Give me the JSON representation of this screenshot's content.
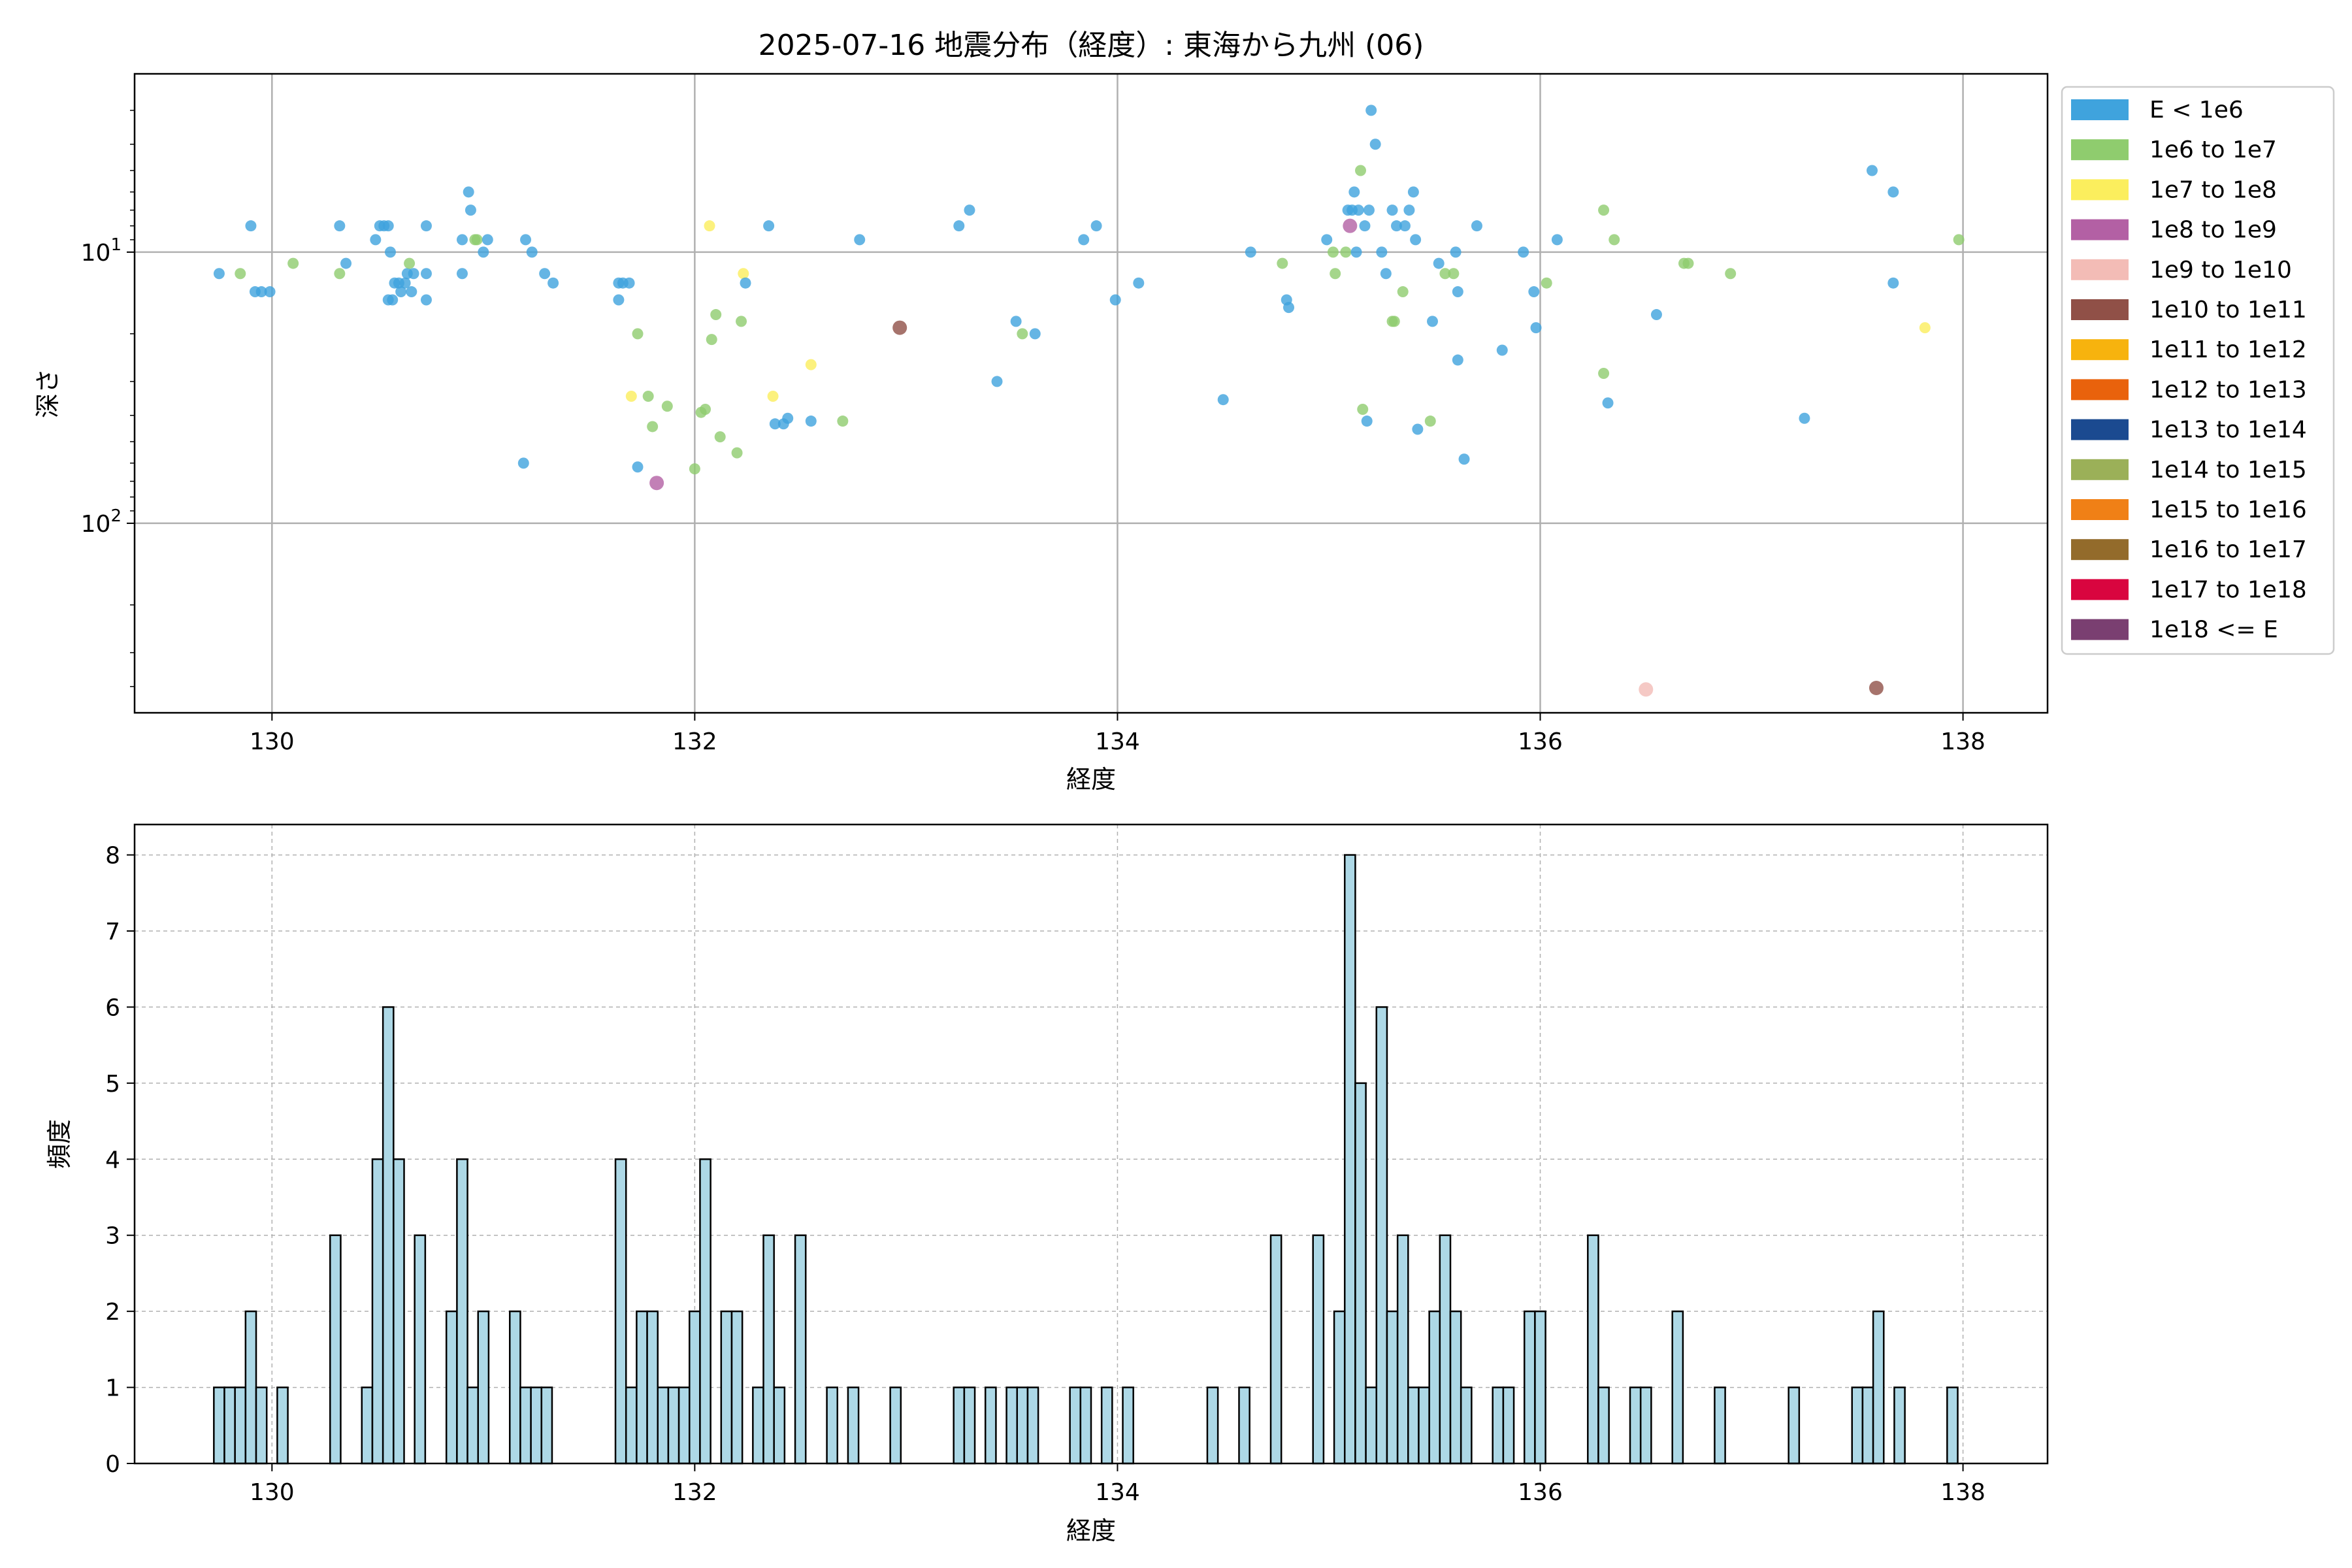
{
  "chart_data": [
    {
      "type": "scatter",
      "title": "2025-07-16 地震分布（経度）: 東海から九州 (06)",
      "xlabel": "経度",
      "ylabel": "深さ",
      "xlim": [
        129.35,
        138.4
      ],
      "ylim": [
        500,
        2.2
      ],
      "yscale": "log",
      "y_inverted": true,
      "grid": true,
      "legend_position": "outside-right",
      "x_ticks": [
        130,
        132,
        134,
        136,
        138
      ],
      "y_ticks": [
        {
          "value": 10,
          "base": "10",
          "exp": "1"
        },
        {
          "value": 100,
          "base": "10",
          "exp": "2"
        }
      ],
      "categories": [
        {
          "label": "E < 1e6",
          "color": "#3fa3dd"
        },
        {
          "label": "1e6 to 1e7",
          "color": "#8fcc6e"
        },
        {
          "label": "1e7 to 1e8",
          "color": "#fbee5d"
        },
        {
          "label": "1e8 to 1e9",
          "color": "#b360a4"
        },
        {
          "label": "1e9 to 1e10",
          "color": "#f3bcb6"
        },
        {
          "label": "1e10 to 1e11",
          "color": "#905047"
        },
        {
          "label": "1e11 to 1e12",
          "color": "#f7b30e"
        },
        {
          "label": "1e12 to 1e13",
          "color": "#e9620c"
        },
        {
          "label": "1e13 to 1e14",
          "color": "#1b4a90"
        },
        {
          "label": "1e14 to 1e15",
          "color": "#9bb058"
        },
        {
          "label": "1e15 to 1e16",
          "color": "#f08016"
        },
        {
          "label": "1e16 to 1e17",
          "color": "#936b2b"
        },
        {
          "label": "1e17 to 1e18",
          "color": "#d9053f"
        },
        {
          "label": "1e18 <= E",
          "color": "#7a3f71"
        }
      ],
      "points": [
        {
          "x": 129.75,
          "y": 12,
          "c": 0
        },
        {
          "x": 129.85,
          "y": 12,
          "c": 1
        },
        {
          "x": 129.9,
          "y": 8,
          "c": 0
        },
        {
          "x": 129.92,
          "y": 14,
          "c": 0
        },
        {
          "x": 129.95,
          "y": 14,
          "c": 0
        },
        {
          "x": 129.99,
          "y": 14,
          "c": 0
        },
        {
          "x": 130.1,
          "y": 11,
          "c": 1
        },
        {
          "x": 130.32,
          "y": 8,
          "c": 0
        },
        {
          "x": 130.32,
          "y": 12,
          "c": 1
        },
        {
          "x": 130.35,
          "y": 11,
          "c": 0
        },
        {
          "x": 130.49,
          "y": 9,
          "c": 0
        },
        {
          "x": 130.51,
          "y": 8,
          "c": 0
        },
        {
          "x": 130.53,
          "y": 8,
          "c": 0
        },
        {
          "x": 130.55,
          "y": 8,
          "c": 0
        },
        {
          "x": 130.56,
          "y": 10,
          "c": 0
        },
        {
          "x": 130.55,
          "y": 15,
          "c": 0
        },
        {
          "x": 130.57,
          "y": 15,
          "c": 0
        },
        {
          "x": 130.58,
          "y": 13,
          "c": 0
        },
        {
          "x": 130.6,
          "y": 13,
          "c": 0
        },
        {
          "x": 130.61,
          "y": 14,
          "c": 0
        },
        {
          "x": 130.63,
          "y": 13,
          "c": 0
        },
        {
          "x": 130.64,
          "y": 12,
          "c": 0
        },
        {
          "x": 130.65,
          "y": 11,
          "c": 1
        },
        {
          "x": 130.66,
          "y": 14,
          "c": 0
        },
        {
          "x": 130.67,
          "y": 12,
          "c": 0
        },
        {
          "x": 130.73,
          "y": 8,
          "c": 0
        },
        {
          "x": 130.73,
          "y": 12,
          "c": 0
        },
        {
          "x": 130.73,
          "y": 15,
          "c": 0
        },
        {
          "x": 130.9,
          "y": 9,
          "c": 0
        },
        {
          "x": 130.9,
          "y": 12,
          "c": 0
        },
        {
          "x": 130.93,
          "y": 6,
          "c": 0
        },
        {
          "x": 130.94,
          "y": 7,
          "c": 0
        },
        {
          "x": 130.96,
          "y": 9,
          "c": 1
        },
        {
          "x": 130.97,
          "y": 9,
          "c": 1
        },
        {
          "x": 131.0,
          "y": 10,
          "c": 0
        },
        {
          "x": 131.02,
          "y": 9,
          "c": 0
        },
        {
          "x": 131.19,
          "y": 60,
          "c": 0
        },
        {
          "x": 131.2,
          "y": 9,
          "c": 0
        },
        {
          "x": 131.23,
          "y": 10,
          "c": 0
        },
        {
          "x": 131.29,
          "y": 12,
          "c": 0
        },
        {
          "x": 131.33,
          "y": 13,
          "c": 0
        },
        {
          "x": 131.64,
          "y": 13,
          "c": 0
        },
        {
          "x": 131.64,
          "y": 15,
          "c": 0
        },
        {
          "x": 131.66,
          "y": 13,
          "c": 0
        },
        {
          "x": 131.69,
          "y": 13,
          "c": 0
        },
        {
          "x": 131.7,
          "y": 34,
          "c": 2
        },
        {
          "x": 131.73,
          "y": 20,
          "c": 1
        },
        {
          "x": 131.73,
          "y": 62,
          "c": 0
        },
        {
          "x": 131.78,
          "y": 34,
          "c": 1
        },
        {
          "x": 131.8,
          "y": 44,
          "c": 1
        },
        {
          "x": 131.82,
          "y": 71,
          "c": 3
        },
        {
          "x": 131.87,
          "y": 37,
          "c": 1
        },
        {
          "x": 132.0,
          "y": 63,
          "c": 1
        },
        {
          "x": 132.03,
          "y": 39,
          "c": 1
        },
        {
          "x": 132.05,
          "y": 38,
          "c": 1
        },
        {
          "x": 132.07,
          "y": 8,
          "c": 2
        },
        {
          "x": 132.08,
          "y": 21,
          "c": 1
        },
        {
          "x": 132.1,
          "y": 17,
          "c": 1
        },
        {
          "x": 132.12,
          "y": 48,
          "c": 1
        },
        {
          "x": 132.2,
          "y": 55,
          "c": 1
        },
        {
          "x": 132.23,
          "y": 12,
          "c": 2
        },
        {
          "x": 132.24,
          "y": 13,
          "c": 0
        },
        {
          "x": 132.22,
          "y": 18,
          "c": 1
        },
        {
          "x": 132.35,
          "y": 8,
          "c": 0
        },
        {
          "x": 132.37,
          "y": 34,
          "c": 2
        },
        {
          "x": 132.38,
          "y": 43,
          "c": 0
        },
        {
          "x": 132.42,
          "y": 43,
          "c": 0
        },
        {
          "x": 132.44,
          "y": 41,
          "c": 0
        },
        {
          "x": 132.55,
          "y": 26,
          "c": 2
        },
        {
          "x": 132.55,
          "y": 42,
          "c": 0
        },
        {
          "x": 132.7,
          "y": 42,
          "c": 1
        },
        {
          "x": 132.78,
          "y": 9,
          "c": 0
        },
        {
          "x": 132.97,
          "y": 19,
          "c": 5
        },
        {
          "x": 133.25,
          "y": 8,
          "c": 0
        },
        {
          "x": 133.3,
          "y": 7,
          "c": 0
        },
        {
          "x": 133.43,
          "y": 30,
          "c": 0
        },
        {
          "x": 133.52,
          "y": 18,
          "c": 0
        },
        {
          "x": 133.55,
          "y": 20,
          "c": 1
        },
        {
          "x": 133.61,
          "y": 20,
          "c": 0
        },
        {
          "x": 133.84,
          "y": 9,
          "c": 0
        },
        {
          "x": 133.9,
          "y": 8,
          "c": 0
        },
        {
          "x": 133.99,
          "y": 15,
          "c": 0
        },
        {
          "x": 134.1,
          "y": 13,
          "c": 0
        },
        {
          "x": 134.5,
          "y": 35,
          "c": 0
        },
        {
          "x": 134.63,
          "y": 10,
          "c": 0
        },
        {
          "x": 134.78,
          "y": 11,
          "c": 1
        },
        {
          "x": 134.8,
          "y": 15,
          "c": 0
        },
        {
          "x": 134.81,
          "y": 16,
          "c": 0
        },
        {
          "x": 134.99,
          "y": 9,
          "c": 0
        },
        {
          "x": 135.02,
          "y": 10,
          "c": 1
        },
        {
          "x": 135.03,
          "y": 12,
          "c": 1
        },
        {
          "x": 135.08,
          "y": 10,
          "c": 1
        },
        {
          "x": 135.09,
          "y": 7,
          "c": 0
        },
        {
          "x": 135.1,
          "y": 8,
          "c": 3
        },
        {
          "x": 135.11,
          "y": 7,
          "c": 0
        },
        {
          "x": 135.12,
          "y": 6,
          "c": 0
        },
        {
          "x": 135.13,
          "y": 10,
          "c": 0
        },
        {
          "x": 135.14,
          "y": 7,
          "c": 0
        },
        {
          "x": 135.15,
          "y": 5,
          "c": 1
        },
        {
          "x": 135.16,
          "y": 38,
          "c": 1
        },
        {
          "x": 135.17,
          "y": 8,
          "c": 0
        },
        {
          "x": 135.18,
          "y": 42,
          "c": 0
        },
        {
          "x": 135.19,
          "y": 7,
          "c": 0
        },
        {
          "x": 135.2,
          "y": 3,
          "c": 0
        },
        {
          "x": 135.22,
          "y": 4,
          "c": 0
        },
        {
          "x": 135.25,
          "y": 10,
          "c": 0
        },
        {
          "x": 135.27,
          "y": 12,
          "c": 0
        },
        {
          "x": 135.3,
          "y": 7,
          "c": 0
        },
        {
          "x": 135.32,
          "y": 8,
          "c": 0
        },
        {
          "x": 135.3,
          "y": 18,
          "c": 1
        },
        {
          "x": 135.31,
          "y": 18,
          "c": 1
        },
        {
          "x": 135.35,
          "y": 14,
          "c": 1
        },
        {
          "x": 135.36,
          "y": 8,
          "c": 0
        },
        {
          "x": 135.38,
          "y": 7,
          "c": 0
        },
        {
          "x": 135.4,
          "y": 6,
          "c": 0
        },
        {
          "x": 135.41,
          "y": 9,
          "c": 0
        },
        {
          "x": 135.42,
          "y": 45,
          "c": 0
        },
        {
          "x": 135.48,
          "y": 42,
          "c": 1
        },
        {
          "x": 135.49,
          "y": 18,
          "c": 0
        },
        {
          "x": 135.52,
          "y": 11,
          "c": 0
        },
        {
          "x": 135.55,
          "y": 12,
          "c": 1
        },
        {
          "x": 135.59,
          "y": 12,
          "c": 1
        },
        {
          "x": 135.6,
          "y": 10,
          "c": 0
        },
        {
          "x": 135.61,
          "y": 14,
          "c": 0
        },
        {
          "x": 135.61,
          "y": 25,
          "c": 0
        },
        {
          "x": 135.64,
          "y": 58,
          "c": 0
        },
        {
          "x": 135.7,
          "y": 8,
          "c": 0
        },
        {
          "x": 135.82,
          "y": 23,
          "c": 0
        },
        {
          "x": 135.92,
          "y": 10,
          "c": 0
        },
        {
          "x": 135.97,
          "y": 14,
          "c": 0
        },
        {
          "x": 135.98,
          "y": 19,
          "c": 0
        },
        {
          "x": 136.03,
          "y": 13,
          "c": 1
        },
        {
          "x": 136.08,
          "y": 9,
          "c": 0
        },
        {
          "x": 136.3,
          "y": 28,
          "c": 1
        },
        {
          "x": 136.3,
          "y": 7,
          "c": 1
        },
        {
          "x": 136.32,
          "y": 36,
          "c": 0
        },
        {
          "x": 136.35,
          "y": 9,
          "c": 1
        },
        {
          "x": 136.5,
          "y": 410,
          "c": 4
        },
        {
          "x": 136.55,
          "y": 17,
          "c": 0
        },
        {
          "x": 136.68,
          "y": 11,
          "c": 1
        },
        {
          "x": 136.7,
          "y": 11,
          "c": 1
        },
        {
          "x": 136.9,
          "y": 12,
          "c": 1
        },
        {
          "x": 137.25,
          "y": 41,
          "c": 0
        },
        {
          "x": 137.57,
          "y": 5,
          "c": 0
        },
        {
          "x": 137.59,
          "y": 405,
          "c": 5
        },
        {
          "x": 137.67,
          "y": 6,
          "c": 0
        },
        {
          "x": 137.67,
          "y": 13,
          "c": 0
        },
        {
          "x": 137.82,
          "y": 19,
          "c": 2
        },
        {
          "x": 137.98,
          "y": 9,
          "c": 1
        }
      ]
    },
    {
      "type": "bar",
      "xlabel": "経度",
      "ylabel": "頻度",
      "xlim": [
        129.35,
        138.4
      ],
      "ylim": [
        0,
        8.4
      ],
      "grid": true,
      "bar_color": "#add8e6",
      "x_ticks": [
        130,
        132,
        134,
        136,
        138
      ],
      "y_ticks": [
        0,
        1,
        2,
        3,
        4,
        5,
        6,
        7,
        8
      ],
      "bin_width": 0.05,
      "x": [
        129.75,
        129.8,
        129.85,
        129.9,
        129.95,
        130.05,
        130.3,
        130.45,
        130.5,
        130.55,
        130.6,
        130.7,
        130.85,
        130.9,
        130.95,
        131.0,
        131.15,
        131.2,
        131.25,
        131.3,
        131.65,
        131.7,
        131.75,
        131.8,
        131.85,
        131.9,
        131.95,
        132.0,
        132.05,
        132.15,
        132.2,
        132.3,
        132.35,
        132.4,
        132.5,
        132.65,
        132.75,
        132.95,
        133.25,
        133.3,
        133.4,
        133.5,
        133.55,
        133.6,
        133.8,
        133.85,
        133.95,
        134.05,
        134.45,
        134.6,
        134.75,
        134.95,
        135.05,
        135.1,
        135.15,
        135.2,
        135.25,
        135.3,
        135.35,
        135.4,
        135.45,
        135.5,
        135.55,
        135.6,
        135.65,
        135.8,
        135.85,
        135.95,
        136.0,
        136.25,
        136.3,
        136.45,
        136.5,
        136.65,
        136.85,
        137.2,
        137.5,
        137.55,
        137.6,
        137.7,
        137.95
      ],
      "values": [
        1,
        1,
        1,
        2,
        1,
        1,
        3,
        1,
        4,
        6,
        4,
        3,
        2,
        4,
        1,
        2,
        2,
        1,
        1,
        1,
        4,
        1,
        2,
        2,
        1,
        1,
        1,
        2,
        4,
        2,
        2,
        1,
        3,
        1,
        3,
        1,
        1,
        1,
        1,
        1,
        1,
        1,
        1,
        1,
        1,
        1,
        1,
        1,
        1,
        1,
        3,
        3,
        2,
        8,
        5,
        1,
        6,
        2,
        3,
        1,
        1,
        2,
        3,
        2,
        1,
        1,
        1,
        2,
        2,
        3,
        1,
        1,
        1,
        2,
        1,
        1,
        1,
        1,
        2,
        1,
        1
      ]
    }
  ]
}
